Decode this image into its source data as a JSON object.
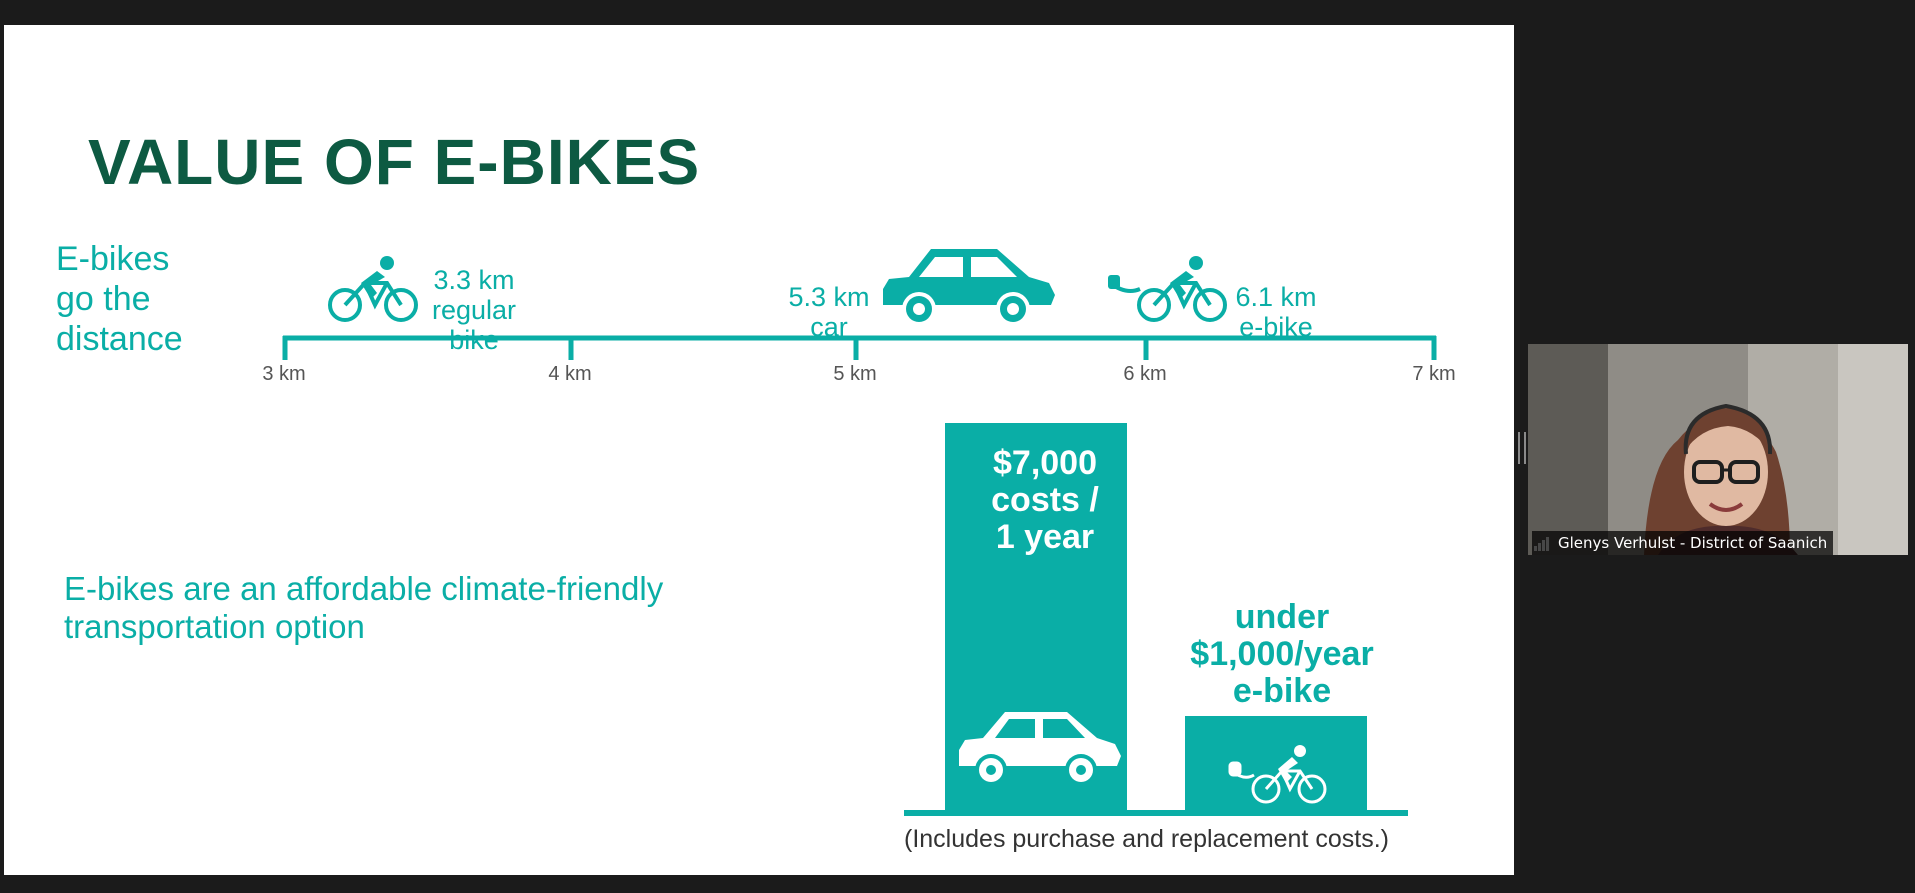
{
  "slide": {
    "title": "VALUE OF E-BIKES",
    "distance_heading": "E-bikes\ngo the\ndistance",
    "axis_ticks": [
      "3 km",
      "4 km",
      "5 km",
      "6 km",
      "7 km"
    ],
    "markers": {
      "regular_bike": "3.3 km\nregular\nbike",
      "car": "5.3 km\ncar",
      "ebike": "6.1 km\ne-bike"
    },
    "tagline": "E-bikes are an affordable climate-friendly transportation option",
    "car_cost": "$7,000\ncosts /\n1 year",
    "ebike_cost": "under\n$1,000/year\ne-bike",
    "footnote": "(Includes purchase and replacement costs.)",
    "colors": {
      "teal": "#0aaea6",
      "title_green": "#0d5a42"
    }
  },
  "participant": {
    "name": "Glenys Verhulst - District of Saanich",
    "icon": "signal-strength-icon"
  }
}
